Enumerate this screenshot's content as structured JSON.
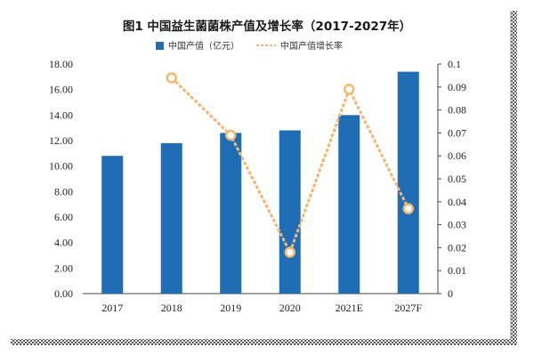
{
  "chart_data": {
    "type": "bar",
    "title": "图1 中国益生菌菌株产值及增长率（2017-2027年）",
    "categories": [
      "2017",
      "2018",
      "2019",
      "2020",
      "2021E",
      "2027F"
    ],
    "series": [
      {
        "name": "中国产值（亿元）",
        "type": "bar",
        "axis": "left",
        "color": "#1f6db5",
        "values": [
          10.8,
          11.8,
          12.6,
          12.8,
          14.0,
          17.4
        ]
      },
      {
        "name": "中国产值增长率",
        "type": "line",
        "axis": "right",
        "color": "#f2b872",
        "values": [
          null,
          0.094,
          0.069,
          0.018,
          0.089,
          0.037
        ]
      }
    ],
    "y_left": {
      "ylim": [
        0,
        18
      ],
      "ticks": [
        "0.00",
        "2.00",
        "4.00",
        "6.00",
        "8.00",
        "10.00",
        "12.00",
        "14.00",
        "16.00",
        "18.00"
      ]
    },
    "y_right": {
      "ylim": [
        0,
        0.1
      ],
      "ticks": [
        "0",
        "0.01",
        "0.02",
        "0.03",
        "0.04",
        "0.05",
        "0.06",
        "0.07",
        "0.08",
        "0.09",
        "0.1"
      ]
    },
    "legend": "top-center",
    "grid": false
  }
}
